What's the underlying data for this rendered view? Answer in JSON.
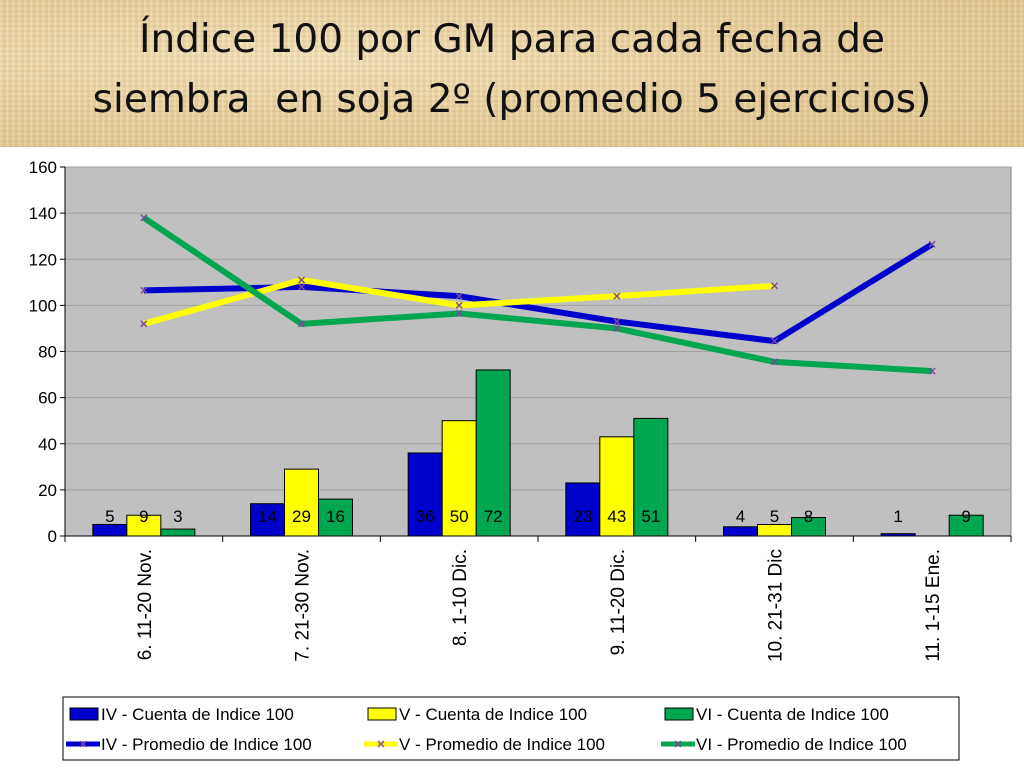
{
  "title": {
    "line1": "Índice 100 por GM para cada fecha de",
    "line2": "siembra  en soja 2º (promedio 5 ejercicios)"
  },
  "chart_data": {
    "type": "bar",
    "categories": [
      "6. 11-20 Nov.",
      "7. 21-30 Nov.",
      "8. 1-10 Dic.",
      "9. 11-20 Dic.",
      "10. 21-31 Dic",
      "11. 1-15 Ene."
    ],
    "ylim": [
      0,
      160
    ],
    "yticks": [
      0,
      20,
      40,
      60,
      80,
      100,
      120,
      140,
      160
    ],
    "grid": true,
    "legend_position": "bottom",
    "bar_series": [
      {
        "name": "IV - Cuenta de Indice 100",
        "color": "#0000cc",
        "values": [
          5,
          14,
          36,
          23,
          4,
          1
        ],
        "labels": [
          "5",
          "14",
          "36",
          "23",
          "4",
          "1"
        ]
      },
      {
        "name": "V - Cuenta de Indice 100",
        "color": "#ffff00",
        "values": [
          9,
          29,
          50,
          43,
          5,
          0
        ],
        "labels": [
          "9",
          "29",
          "50",
          "43",
          "5",
          ""
        ]
      },
      {
        "name": "VI - Cuenta de Indice 100",
        "color": "#00a650",
        "values": [
          3,
          16,
          72,
          51,
          8,
          9
        ],
        "labels": [
          "3",
          "16",
          "72",
          "51",
          "8",
          "9"
        ]
      }
    ],
    "line_series": [
      {
        "name": "IV - Promedio de Indice 100",
        "color": "#0000cc",
        "values": [
          106.5,
          108,
          104,
          93,
          84.5,
          126.5
        ]
      },
      {
        "name": "V - Promedio de Indice 100",
        "color": "#ffff00",
        "values": [
          92,
          111,
          100,
          104,
          108.5,
          null
        ]
      },
      {
        "name": "VI - Promedio de Indice 100",
        "color": "#00a650",
        "values": [
          138,
          92,
          96.5,
          90,
          75.5,
          71.5
        ]
      }
    ],
    "plot_background": "#c0c0c0",
    "line_marker_color": "#7a4a9a"
  }
}
